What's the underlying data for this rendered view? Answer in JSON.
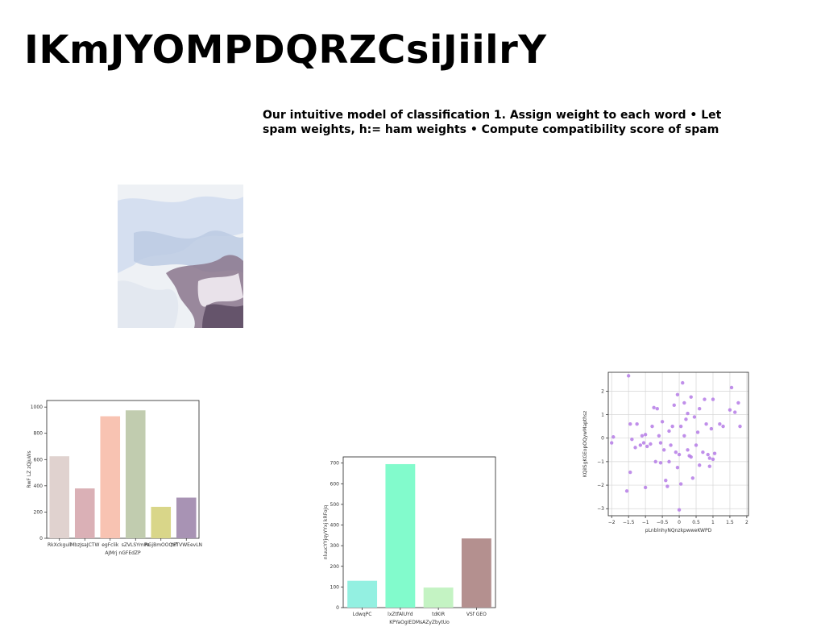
{
  "page": {
    "title": "IKmJYOMPDQRZCsiJiilrY",
    "body_text": "Our intuitive model of classification 1. Assign weight to each word • Let spam weights, h:= ham weights • Compute compatibility score of spam"
  },
  "photo": {
    "icon": "abstract-draped-fabric-image",
    "colors": [
      "#dfe6ef",
      "#b9c7dd",
      "#7a6a80",
      "#f3f4f6"
    ]
  },
  "chart_data": [
    {
      "type": "bar",
      "categories": [
        "RkXckgull",
        "MbzJsaJCTW",
        "egFclik",
        "sZVLSYmPe",
        "RGjBmOOQxf",
        "YFTVWEevLN"
      ],
      "values": [
        625,
        380,
        930,
        975,
        240,
        310
      ],
      "colors": [
        "#e0d2cf",
        "#dab0b6",
        "#f8c3b2",
        "#c1ccaf",
        "#d9d689",
        "#a893b4"
      ],
      "xlabel": "AJMrj nGFEdZP",
      "ylabel": "RwF LZ zQjuWs",
      "ylim": [
        0,
        1050
      ],
      "yticks": [
        0,
        200,
        400,
        600,
        800,
        1000
      ],
      "grid": false
    },
    {
      "type": "bar",
      "categories": [
        "LdwqPC",
        "lxZtfAlUYd",
        "tdKIR",
        "VSf GEO"
      ],
      "values": [
        130,
        695,
        97,
        335
      ],
      "colors": [
        "#93f0e1",
        "#82fbcc",
        "#c4f3c3",
        "#b4908f"
      ],
      "xlabel": "KPYaOgIEDMsAZyZbytUo",
      "ylabel": "nluucYYjqyYYxj kRFoJq",
      "ylim": [
        0,
        730
      ],
      "yticks": [
        0,
        100,
        200,
        300,
        400,
        500,
        600,
        700
      ],
      "grid": false
    },
    {
      "type": "scatter",
      "xlabel": "pLnblnhyNQnzkpwweKWPD",
      "ylabel": "KQiISgKGEopOQywMapthsz",
      "xlim": [
        -2.1,
        2.05
      ],
      "ylim": [
        -3.3,
        2.8
      ],
      "xticks": [
        -2.0,
        -1.5,
        -1.0,
        -0.5,
        0.0,
        0.5,
        1.0,
        1.5,
        2.0
      ],
      "yticks": [
        -3,
        -2,
        -1,
        0,
        1,
        2
      ],
      "grid": true,
      "color": "#b57be6",
      "points": [
        [
          -2.0,
          -0.2
        ],
        [
          -1.95,
          0.05
        ],
        [
          -1.5,
          2.65
        ],
        [
          -1.45,
          0.6
        ],
        [
          -1.4,
          -0.05
        ],
        [
          -1.3,
          -0.4
        ],
        [
          -1.25,
          0.6
        ],
        [
          -1.15,
          -0.3
        ],
        [
          -1.1,
          0.1
        ],
        [
          -1.05,
          -0.2
        ],
        [
          -1.0,
          0.15
        ],
        [
          -1.0,
          -2.1
        ],
        [
          -0.95,
          -0.35
        ],
        [
          -0.85,
          -0.25
        ],
        [
          -0.8,
          0.5
        ],
        [
          -0.75,
          1.3
        ],
        [
          -0.7,
          -1.0
        ],
        [
          -0.65,
          1.25
        ],
        [
          -0.6,
          0.1
        ],
        [
          -0.55,
          -0.2
        ],
        [
          -0.5,
          0.7
        ],
        [
          -0.45,
          -0.5
        ],
        [
          -0.4,
          -1.8
        ],
        [
          -0.35,
          -2.05
        ],
        [
          -0.3,
          0.3
        ],
        [
          -0.3,
          -1.0
        ],
        [
          -0.25,
          -0.3
        ],
        [
          -0.2,
          0.5
        ],
        [
          -0.15,
          1.4
        ],
        [
          -0.1,
          -0.6
        ],
        [
          -0.05,
          1.85
        ],
        [
          0.0,
          -3.05
        ],
        [
          0.0,
          -0.7
        ],
        [
          0.05,
          -1.95
        ],
        [
          0.05,
          0.5
        ],
        [
          0.1,
          2.35
        ],
        [
          0.15,
          0.1
        ],
        [
          0.15,
          1.5
        ],
        [
          0.2,
          0.8
        ],
        [
          0.25,
          -0.5
        ],
        [
          0.3,
          -0.75
        ],
        [
          0.35,
          1.75
        ],
        [
          0.35,
          -0.8
        ],
        [
          0.4,
          -1.7
        ],
        [
          0.45,
          0.9
        ],
        [
          0.5,
          -0.3
        ],
        [
          0.55,
          0.25
        ],
        [
          0.6,
          1.25
        ],
        [
          0.6,
          -1.15
        ],
        [
          0.7,
          -0.6
        ],
        [
          0.75,
          1.65
        ],
        [
          0.8,
          0.6
        ],
        [
          0.85,
          -0.7
        ],
        [
          0.9,
          -1.2
        ],
        [
          0.95,
          0.4
        ],
        [
          1.0,
          1.65
        ],
        [
          1.0,
          -0.9
        ],
        [
          1.05,
          -0.65
        ],
        [
          1.2,
          0.6
        ],
        [
          1.3,
          0.5
        ],
        [
          1.5,
          1.2
        ],
        [
          1.55,
          2.15
        ],
        [
          1.65,
          1.1
        ],
        [
          1.75,
          1.5
        ],
        [
          1.8,
          0.5
        ],
        [
          -1.45,
          -1.45
        ],
        [
          -1.55,
          -2.25
        ],
        [
          -0.55,
          -1.05
        ],
        [
          0.9,
          -0.85
        ],
        [
          0.25,
          1.05
        ],
        [
          -0.05,
          -1.25
        ]
      ]
    }
  ]
}
